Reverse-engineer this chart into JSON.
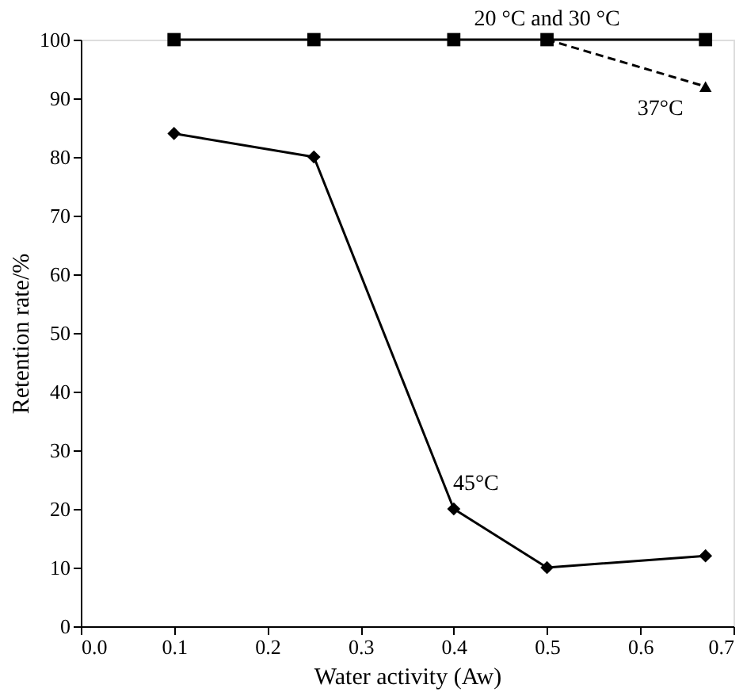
{
  "chart_data": {
    "type": "line",
    "xlabel": "Water activity (Aw)",
    "ylabel": "Retention rate/%",
    "series": [
      {
        "x": [
          0.1,
          0.25,
          0.4,
          0.5,
          0.67
        ],
        "values": [
          84,
          80,
          20,
          10,
          12
        ],
        "color": "#000000",
        "marker": "diamond",
        "line_style": "solid"
      },
      {
        "x": [
          0.1,
          0.25,
          0.4,
          0.5,
          0.67
        ],
        "values": [
          100,
          100,
          100,
          100,
          100
        ],
        "color": "#000000",
        "marker": "square",
        "line_style": "solid"
      },
      {
        "x": [
          0.5,
          0.67
        ],
        "values": [
          100,
          92
        ],
        "color": "#000000",
        "marker": "triangle",
        "line_style": "dashed"
      }
    ],
    "annotations": [
      {
        "text": "45°C",
        "x": 0.4,
        "y": 20
      },
      {
        "text": "20 °C and 30 °C",
        "x": 0.5,
        "y": 100
      },
      {
        "text": "37°C",
        "x": 0.67,
        "y": 92
      }
    ],
    "xlim": [
      0,
      0.7
    ],
    "ylim": [
      0,
      100
    ],
    "xticks": [
      {
        "value": 0,
        "label": "0.0"
      },
      0.1,
      0.2,
      0.3,
      0.4,
      0.5,
      0.6,
      0.7
    ],
    "yticks": [
      0,
      10,
      20,
      30,
      40,
      50,
      60,
      70,
      80,
      90,
      100
    ],
    "grid": false
  }
}
